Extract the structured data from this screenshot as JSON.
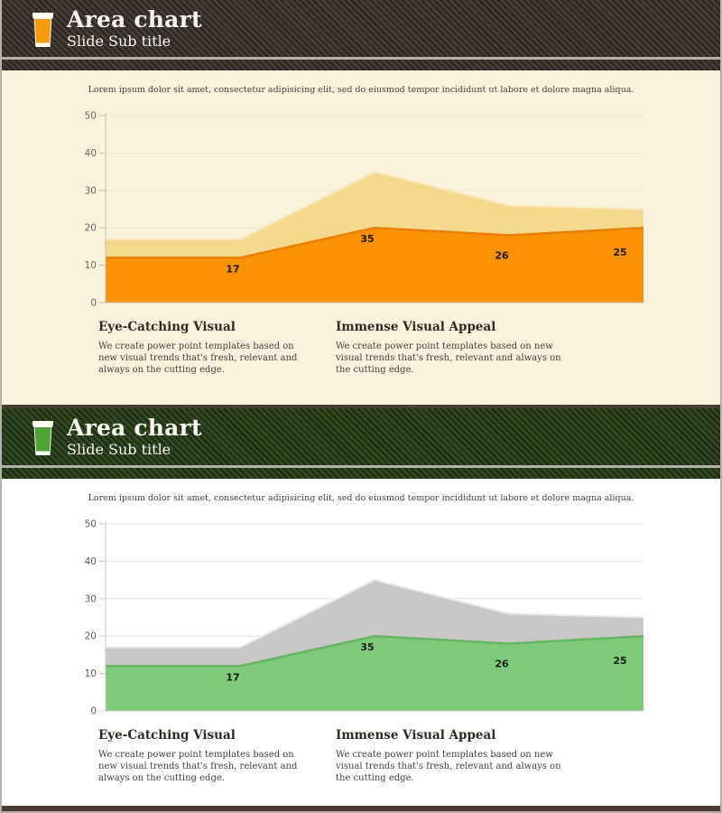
{
  "page": {
    "border_color": "#b5b1ad",
    "divider_color": "#4b3c32",
    "bottom_bar_color": "#4b3b32"
  },
  "slides": [
    {
      "theme": "orange",
      "header": {
        "title": "Area chart",
        "subtitle": "Slide Sub title",
        "bg_color": "#443c35",
        "stripe_color": "#2a2522",
        "accent_line_color": "#b4b1ac",
        "icon": "beer-glass-icon",
        "icon_body_color": "#f59b10",
        "icon_foam_color": "#fdfcf4"
      },
      "body_bg": "#faf3dc",
      "intro": "Lorem ipsum dolor sit amet, consectetur adipisicing elit, sed do eiusmod tempor incididunt ut labore et dolore magna aliqua.",
      "columns": [
        {
          "heading": "Eye-Catching Visual",
          "text": "We create power point templates based on new visual trends that's fresh, relevant and always on the cutting edge."
        },
        {
          "heading": "Immense Visual Appeal",
          "text": "We create power point templates based on new visual trends that's fresh, relevant and always on the cutting edge."
        }
      ],
      "chart_colors": {
        "back_fill": "#f6d88f",
        "back_stroke": "#fbe9bd",
        "front_fill": "#fb9104",
        "front_stroke": "#e88000",
        "grid": "#efe7cc",
        "axis": "#c6bda6",
        "tick_label": "#6b675c",
        "data_label": "#1f1c16"
      }
    },
    {
      "theme": "green",
      "header": {
        "title": "Area chart",
        "subtitle": "Slide Sub title",
        "bg_color": "#31491f",
        "stripe_color": "#1c2b11",
        "accent_line_color": "#b4b1ac",
        "icon": "beer-glass-icon",
        "icon_body_color": "#4ea437",
        "icon_foam_color": "#fdfcf4"
      },
      "body_bg": "#ffffff",
      "intro": "Lorem ipsum dolor sit amet, consectetur adipisicing elit, sed do eiusmod tempor incididunt ut labore et dolore magna aliqua.",
      "columns": [
        {
          "heading": "Eye-Catching Visual",
          "text": "We create power point templates based on new visual trends that's fresh, relevant and always on the cutting edge."
        },
        {
          "heading": "Immense Visual Appeal",
          "text": "We create power point templates based on new visual trends that's fresh, relevant and always on the cutting edge."
        }
      ],
      "chart_colors": {
        "back_fill": "#cac7c7",
        "back_stroke": "#e9e7e7",
        "front_fill": "#7ec97b",
        "front_stroke": "#63b760",
        "grid": "#e4e4e4",
        "axis": "#c9c9c9",
        "tick_label": "#5f5f5f",
        "data_label": "#1f1c16"
      }
    }
  ],
  "chart_data": {
    "type": "area",
    "x": [
      1,
      2,
      3,
      4,
      5
    ],
    "series": [
      {
        "name": "back-area",
        "values": [
          17,
          17,
          35,
          26,
          25
        ]
      },
      {
        "name": "front-area",
        "values": [
          12,
          12,
          20,
          18,
          20
        ]
      }
    ],
    "data_labels": [
      {
        "point": 2,
        "value": 17
      },
      {
        "point": 3,
        "value": 35
      },
      {
        "point": 4,
        "value": 26
      },
      {
        "point": 5,
        "value": 25
      }
    ],
    "title": "",
    "xlabel": "",
    "ylabel": "",
    "ylim": [
      0,
      50
    ],
    "yticks": [
      0,
      10,
      20,
      30,
      40,
      50
    ],
    "grid": true,
    "legend": false
  }
}
